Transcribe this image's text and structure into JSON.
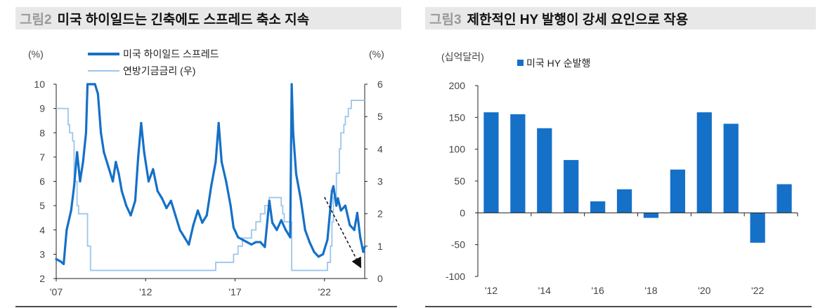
{
  "left_panel": {
    "fig_label": "그림2",
    "title": "미국 하이일드는 긴축에도 스프레드 축소 지속"
  },
  "right_panel": {
    "fig_label": "그림3",
    "title": "제한적인 HY 발행이 강세 요인으로 작용"
  },
  "chart_data": [
    {
      "type": "line",
      "title": "미국 하이일드는 긴축에도 스프레드 축소 지속",
      "y_unit_left": "(%)",
      "y_unit_right": "(%)",
      "ylim_left": [
        2,
        10
      ],
      "ylim_right": [
        0,
        6
      ],
      "yticks_left": [
        "2",
        "3",
        "4",
        "5",
        "6",
        "7",
        "8",
        "9",
        "10"
      ],
      "yticks_right": [
        "0",
        "1",
        "2",
        "3",
        "4",
        "5",
        "6"
      ],
      "xticks": [
        {
          "date": "2007-01",
          "label": "'07"
        },
        {
          "date": "2012-01",
          "label": "'12"
        },
        {
          "date": "2017-01",
          "label": "'17"
        },
        {
          "date": "2022-01",
          "label": "'22"
        }
      ],
      "xlim": [
        "2007-01",
        "2024-04"
      ],
      "legend_placement": "top-left",
      "series": [
        {
          "name": "미국 하이일드 스프레드",
          "axis": "left",
          "color": "#1570c8",
          "points": [
            [
              "2007-01",
              2.8
            ],
            [
              "2007-04",
              2.7
            ],
            [
              "2007-06",
              2.6
            ],
            [
              "2007-08",
              4.0
            ],
            [
              "2007-11",
              4.8
            ],
            [
              "2008-01",
              5.8
            ],
            [
              "2008-03",
              7.2
            ],
            [
              "2008-05",
              6.0
            ],
            [
              "2008-07",
              6.8
            ],
            [
              "2008-09",
              8.0
            ],
            [
              "2008-10",
              10
            ],
            [
              "2008-12",
              10
            ],
            [
              "2009-03",
              10
            ],
            [
              "2009-05",
              9.6
            ],
            [
              "2009-07",
              8.0
            ],
            [
              "2009-09",
              7.2
            ],
            [
              "2009-12",
              6.6
            ],
            [
              "2010-03",
              6.0
            ],
            [
              "2010-05",
              6.8
            ],
            [
              "2010-07",
              6.3
            ],
            [
              "2010-09",
              5.6
            ],
            [
              "2010-12",
              5.0
            ],
            [
              "2011-03",
              4.6
            ],
            [
              "2011-06",
              5.2
            ],
            [
              "2011-08",
              7.0
            ],
            [
              "2011-10",
              8.4
            ],
            [
              "2011-12",
              7.2
            ],
            [
              "2012-03",
              6.0
            ],
            [
              "2012-06",
              6.5
            ],
            [
              "2012-09",
              5.6
            ],
            [
              "2012-12",
              5.3
            ],
            [
              "2013-03",
              4.9
            ],
            [
              "2013-06",
              5.2
            ],
            [
              "2013-09",
              4.6
            ],
            [
              "2013-12",
              4.0
            ],
            [
              "2014-03",
              3.7
            ],
            [
              "2014-06",
              3.4
            ],
            [
              "2014-09",
              4.2
            ],
            [
              "2014-12",
              4.8
            ],
            [
              "2015-03",
              4.3
            ],
            [
              "2015-06",
              4.6
            ],
            [
              "2015-09",
              5.8
            ],
            [
              "2015-12",
              6.8
            ],
            [
              "2016-02",
              8.4
            ],
            [
              "2016-04",
              6.8
            ],
            [
              "2016-07",
              6.0
            ],
            [
              "2016-10",
              5.0
            ],
            [
              "2016-12",
              4.1
            ],
            [
              "2017-03",
              3.7
            ],
            [
              "2017-06",
              3.6
            ],
            [
              "2017-09",
              3.5
            ],
            [
              "2017-12",
              3.4
            ],
            [
              "2018-03",
              3.5
            ],
            [
              "2018-06",
              3.5
            ],
            [
              "2018-09",
              3.3
            ],
            [
              "2018-12",
              5.2
            ],
            [
              "2019-02",
              4.3
            ],
            [
              "2019-05",
              4.0
            ],
            [
              "2019-08",
              4.4
            ],
            [
              "2019-11",
              4.0
            ],
            [
              "2020-02",
              3.7
            ],
            [
              "2020-03",
              10
            ],
            [
              "2020-04",
              8.0
            ],
            [
              "2020-06",
              6.3
            ],
            [
              "2020-09",
              5.3
            ],
            [
              "2020-12",
              4.0
            ],
            [
              "2021-03",
              3.5
            ],
            [
              "2021-06",
              3.1
            ],
            [
              "2021-09",
              2.9
            ],
            [
              "2021-12",
              3.0
            ],
            [
              "2022-03",
              3.6
            ],
            [
              "2022-06",
              5.6
            ],
            [
              "2022-07",
              5.8
            ],
            [
              "2022-09",
              5.0
            ],
            [
              "2022-10",
              5.3
            ],
            [
              "2022-12",
              4.8
            ],
            [
              "2023-03",
              5.0
            ],
            [
              "2023-06",
              4.2
            ],
            [
              "2023-09",
              4.0
            ],
            [
              "2023-11",
              4.7
            ],
            [
              "2024-01",
              3.7
            ],
            [
              "2024-03",
              3.1
            ],
            [
              "2024-04",
              3.3
            ]
          ]
        },
        {
          "name": "연방기금금리 (우)",
          "axis": "right",
          "color": "#9cc6ec",
          "step": true,
          "points": [
            [
              "2007-01",
              5.25
            ],
            [
              "2007-09",
              4.75
            ],
            [
              "2007-10",
              4.5
            ],
            [
              "2007-12",
              4.25
            ],
            [
              "2008-01",
              3.0
            ],
            [
              "2008-03",
              2.25
            ],
            [
              "2008-04",
              2.0
            ],
            [
              "2008-10",
              1.0
            ],
            [
              "2008-12",
              0.25
            ],
            [
              "2015-12",
              0.5
            ],
            [
              "2016-12",
              0.75
            ],
            [
              "2017-03",
              1.0
            ],
            [
              "2017-06",
              1.25
            ],
            [
              "2017-12",
              1.5
            ],
            [
              "2018-03",
              1.75
            ],
            [
              "2018-06",
              2.0
            ],
            [
              "2018-09",
              2.25
            ],
            [
              "2018-12",
              2.5
            ],
            [
              "2019-08",
              2.25
            ],
            [
              "2019-09",
              2.0
            ],
            [
              "2019-10",
              1.75
            ],
            [
              "2020-03",
              0.25
            ],
            [
              "2022-03",
              0.5
            ],
            [
              "2022-05",
              1.0
            ],
            [
              "2022-06",
              1.75
            ],
            [
              "2022-07",
              2.5
            ],
            [
              "2022-09",
              3.25
            ],
            [
              "2022-11",
              4.0
            ],
            [
              "2022-12",
              4.5
            ],
            [
              "2023-02",
              4.75
            ],
            [
              "2023-03",
              5.0
            ],
            [
              "2023-05",
              5.25
            ],
            [
              "2023-07",
              5.5
            ],
            [
              "2024-04",
              5.5
            ]
          ]
        }
      ],
      "annotation": {
        "type": "dashed-arrow",
        "from": [
          "2022-01",
          5.35
        ],
        "to": [
          "2024-01",
          2.5
        ]
      }
    },
    {
      "type": "bar",
      "title": "제한적인 HY 발행이 강세 요인으로 작용",
      "y_unit": "(십억달러)",
      "ylim": [
        -100,
        200
      ],
      "yticks": [
        "-100",
        "-50",
        "0",
        "50",
        "100",
        "150",
        "200"
      ],
      "categories": [
        "2012",
        "2013",
        "2014",
        "2015",
        "2016",
        "2017",
        "2018",
        "2019",
        "2020",
        "2021",
        "2022",
        "2023"
      ],
      "xtick_labels": [
        "'12",
        "'14",
        "'16",
        "'18",
        "'20",
        "'22"
      ],
      "legend_placement": "top-left",
      "series": [
        {
          "name": "미국 HY 순발행",
          "color": "#1570c8",
          "values": [
            158,
            155,
            133,
            83,
            18,
            37,
            -8,
            68,
            158,
            140,
            -47,
            45
          ]
        }
      ]
    }
  ]
}
